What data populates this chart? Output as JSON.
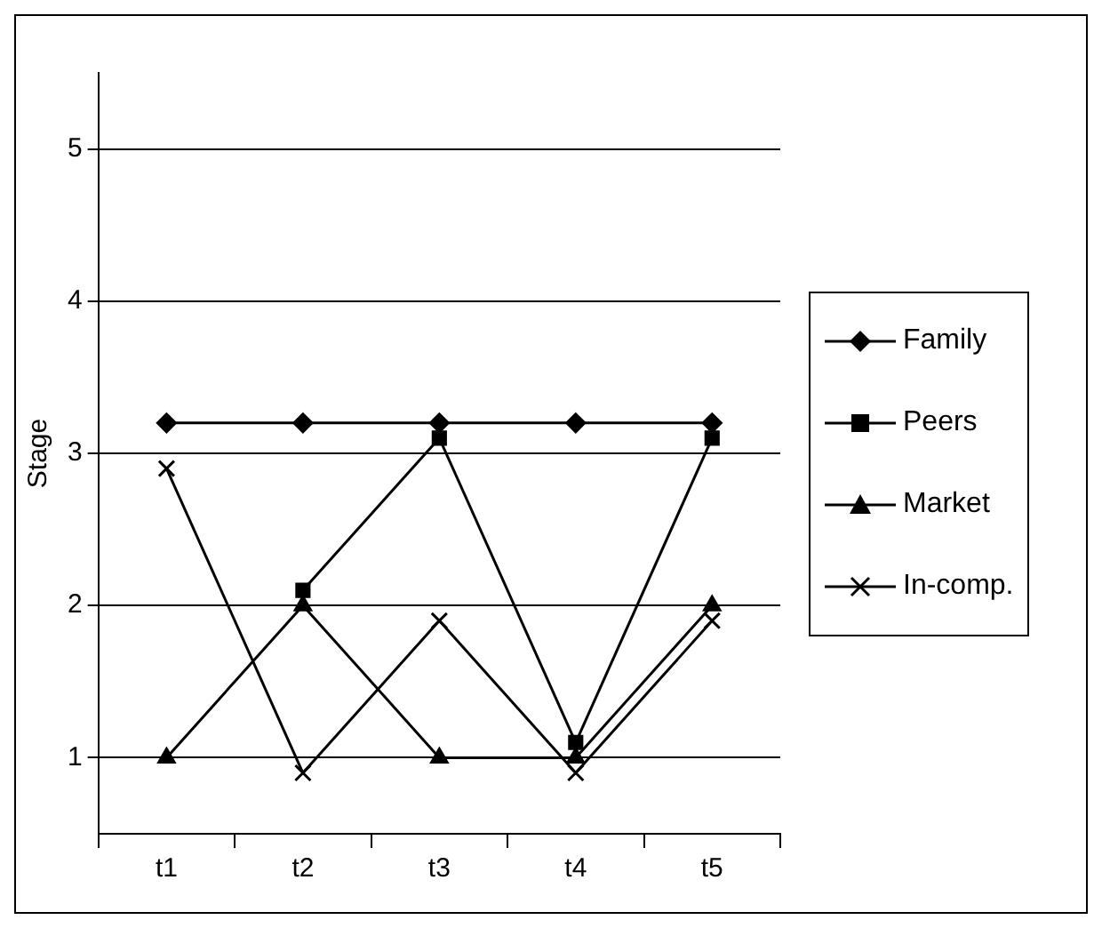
{
  "chart_data": {
    "type": "line",
    "ylabel": "Stage",
    "categories": [
      "t1",
      "t2",
      "t3",
      "t4",
      "t5"
    ],
    "series": [
      {
        "name": "Family",
        "color": "#000000",
        "marker": "diamond",
        "values": [
          3.2,
          3.2,
          3.2,
          3.2,
          3.2
        ]
      },
      {
        "name": "Peers",
        "color": "#000000",
        "marker": "square",
        "values": [
          null,
          2.1,
          3.1,
          1.1,
          3.1
        ]
      },
      {
        "name": "Market",
        "color": "#000000",
        "marker": "triangle",
        "values": [
          1,
          2,
          1,
          1,
          2
        ]
      },
      {
        "name": "In-comp.",
        "color": "#000000",
        "marker": "cross",
        "values": [
          2.9,
          0.9,
          1.9,
          0.9,
          1.9
        ]
      }
    ],
    "ylim": [
      0.5,
      5.5
    ],
    "yticks": [
      1,
      2,
      3,
      4,
      5
    ],
    "grid": "y",
    "legend": "right"
  }
}
